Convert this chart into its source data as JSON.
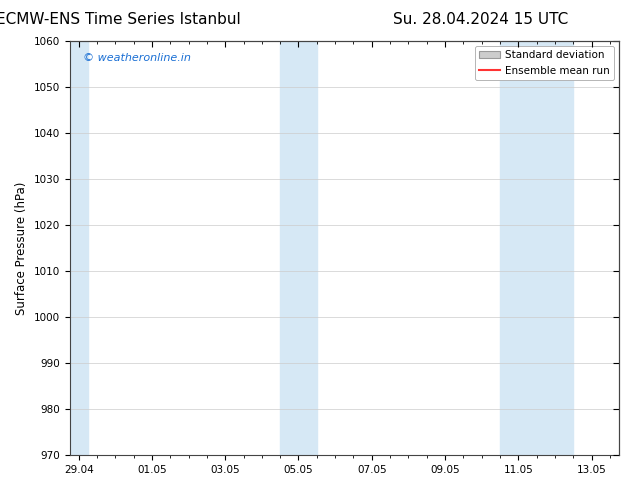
{
  "title_left": "ECMW-ENS Time Series Istanbul",
  "title_right": "Su. 28.04.2024 15 UTC",
  "ylabel": "Surface Pressure (hPa)",
  "ylim": [
    970,
    1060
  ],
  "yticks": [
    970,
    980,
    990,
    1000,
    1010,
    1020,
    1030,
    1040,
    1050,
    1060
  ],
  "xtick_labels": [
    "29.04",
    "01.05",
    "03.05",
    "05.05",
    "07.05",
    "09.05",
    "11.05",
    "13.05"
  ],
  "xtick_positions": [
    0,
    2,
    4,
    6,
    8,
    10,
    12,
    14
  ],
  "x_min": -0.25,
  "x_max": 14.75,
  "shaded_bands": [
    {
      "start": -0.25,
      "end": 0.25
    },
    {
      "start": 5.5,
      "end": 6.5
    },
    {
      "start": 11.5,
      "end": 13.5
    }
  ],
  "watermark_text": "© weatheronline.in",
  "watermark_color": "#1a6fd4",
  "background_color": "#ffffff",
  "plot_bg_color": "#ffffff",
  "shade_color": "#d6e8f5",
  "grid_color": "#cccccc",
  "spine_color": "#444444",
  "title_fontsize": 11,
  "tick_fontsize": 7.5,
  "ylabel_fontsize": 8.5,
  "watermark_fontsize": 8,
  "legend_fontsize": 7.5,
  "legend_std_color": "#cccccc",
  "legend_std_edge": "#999999",
  "legend_mean_color": "#ff3333"
}
